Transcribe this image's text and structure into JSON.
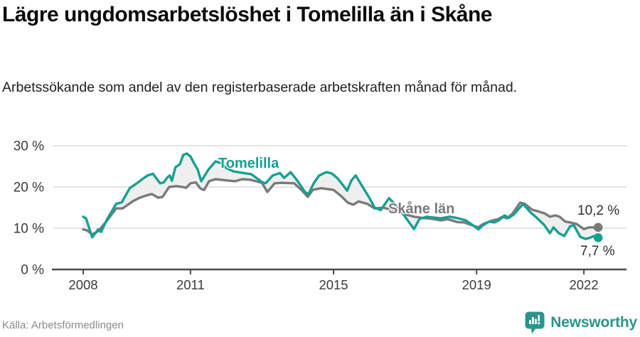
{
  "header": {
    "title": "Lägre ungdomsarbetslöshet i Tomelilla än i Skåne",
    "subtitle": "Arbetssökande som andel av den registerbaserade arbetskraften månad för månad."
  },
  "footer": {
    "source": "Källa: Arbetsförmedlingen",
    "brand": "Newsworthy"
  },
  "colors": {
    "tomelilla": "#16a091",
    "skane": "#7a7a7a",
    "grid": "#dcdcdc",
    "axis": "#4b4b4b",
    "band_fill": "#ededed",
    "tick_text": "#3b3b3b",
    "value_text": "#2e2e2e",
    "brand_teal": "#2c948c"
  },
  "chart_data": {
    "type": "line",
    "title": "Lägre ungdomsarbetslöshet i Tomelilla än i Skåne",
    "subtitle": "Arbetssökande som andel av den registerbaserade arbetskraften månad för månad.",
    "source": "Källa: Arbetsförmedlingen",
    "unit": "%",
    "grid": "horizontal",
    "xlim": [
      2007.1,
      2023.15
    ],
    "ylim": [
      0,
      31.5
    ],
    "x_ticks": [
      2008,
      2011,
      2015,
      2019,
      2022
    ],
    "x_tick_labels": [
      "2008",
      "2011",
      "2015",
      "2019",
      "2022"
    ],
    "y_ticks": [
      0,
      10,
      20,
      30
    ],
    "y_tick_labels": [
      "0 %",
      "10 %",
      "20 %",
      "30 %"
    ],
    "band_between_series": true,
    "series": [
      {
        "name": "Tomelilla",
        "color": "#16a091",
        "end_label": "7,7 %",
        "end_value": 7.7,
        "points": [
          [
            2008.0,
            12.8
          ],
          [
            2008.08,
            12.4
          ],
          [
            2008.25,
            7.8
          ],
          [
            2008.42,
            9.7
          ],
          [
            2008.5,
            9.1
          ],
          [
            2008.67,
            12.2
          ],
          [
            2008.92,
            15.9
          ],
          [
            2009.08,
            16.3
          ],
          [
            2009.3,
            19.7
          ],
          [
            2009.5,
            20.9
          ],
          [
            2009.65,
            21.9
          ],
          [
            2009.8,
            22.8
          ],
          [
            2009.95,
            23.2
          ],
          [
            2010.15,
            20.9
          ],
          [
            2010.25,
            21.1
          ],
          [
            2010.35,
            22.3
          ],
          [
            2010.42,
            22.8
          ],
          [
            2010.48,
            21.5
          ],
          [
            2010.58,
            24.8
          ],
          [
            2010.7,
            25.5
          ],
          [
            2010.8,
            27.8
          ],
          [
            2010.9,
            28.1
          ],
          [
            2011.0,
            27.4
          ],
          [
            2011.1,
            25.7
          ],
          [
            2011.2,
            24.3
          ],
          [
            2011.3,
            21.4
          ],
          [
            2011.5,
            24.2
          ],
          [
            2011.7,
            26.2
          ],
          [
            2011.85,
            25.8
          ],
          [
            2012.0,
            24.6
          ],
          [
            2012.2,
            23.8
          ],
          [
            2012.4,
            23.5
          ],
          [
            2012.7,
            23.1
          ],
          [
            2013.0,
            21.2
          ],
          [
            2013.1,
            20.9
          ],
          [
            2013.3,
            22.8
          ],
          [
            2013.5,
            23.4
          ],
          [
            2013.62,
            22.2
          ],
          [
            2013.8,
            23.6
          ],
          [
            2014.0,
            21.4
          ],
          [
            2014.2,
            18.8
          ],
          [
            2014.3,
            18.3
          ],
          [
            2014.45,
            21.0
          ],
          [
            2014.6,
            22.8
          ],
          [
            2014.8,
            23.6
          ],
          [
            2014.95,
            23.3
          ],
          [
            2015.1,
            22.2
          ],
          [
            2015.25,
            20.6
          ],
          [
            2015.38,
            19.1
          ],
          [
            2015.5,
            21.6
          ],
          [
            2015.62,
            22.8
          ],
          [
            2015.8,
            20.2
          ],
          [
            2016.0,
            17.4
          ],
          [
            2016.15,
            15.0
          ],
          [
            2016.32,
            14.4
          ],
          [
            2016.55,
            17.3
          ],
          [
            2016.85,
            14.6
          ],
          [
            2017.1,
            11.6
          ],
          [
            2017.25,
            9.8
          ],
          [
            2017.4,
            12.2
          ],
          [
            2017.6,
            12.8
          ],
          [
            2017.8,
            12.6
          ],
          [
            2018.0,
            12.4
          ],
          [
            2018.25,
            12.8
          ],
          [
            2018.5,
            12.4
          ],
          [
            2018.7,
            11.9
          ],
          [
            2018.9,
            10.7
          ],
          [
            2019.05,
            9.7
          ],
          [
            2019.18,
            10.7
          ],
          [
            2019.35,
            11.6
          ],
          [
            2019.5,
            11.4
          ],
          [
            2019.62,
            11.9
          ],
          [
            2019.78,
            13.1
          ],
          [
            2019.9,
            12.5
          ],
          [
            2020.05,
            13.4
          ],
          [
            2020.3,
            15.9
          ],
          [
            2020.5,
            13.9
          ],
          [
            2020.7,
            12.4
          ],
          [
            2020.9,
            10.7
          ],
          [
            2021.05,
            8.8
          ],
          [
            2021.15,
            10.2
          ],
          [
            2021.3,
            8.8
          ],
          [
            2021.45,
            8.1
          ],
          [
            2021.62,
            10.5
          ],
          [
            2021.72,
            10.7
          ],
          [
            2021.9,
            7.9
          ],
          [
            2022.05,
            7.4
          ],
          [
            2022.18,
            7.7
          ],
          [
            2022.28,
            8.1
          ],
          [
            2022.4,
            7.7
          ]
        ]
      },
      {
        "name": "Skåne län",
        "color": "#7a7a7a",
        "end_label": "10,2 %",
        "end_value": 10.2,
        "points": [
          [
            2008.0,
            9.7
          ],
          [
            2008.1,
            9.5
          ],
          [
            2008.25,
            8.5
          ],
          [
            2008.42,
            9.3
          ],
          [
            2008.67,
            11.9
          ],
          [
            2008.92,
            14.8
          ],
          [
            2009.1,
            14.8
          ],
          [
            2009.25,
            15.7
          ],
          [
            2009.4,
            16.6
          ],
          [
            2009.58,
            17.4
          ],
          [
            2009.75,
            17.9
          ],
          [
            2009.92,
            18.3
          ],
          [
            2010.1,
            17.4
          ],
          [
            2010.22,
            17.6
          ],
          [
            2010.4,
            20.0
          ],
          [
            2010.6,
            20.2
          ],
          [
            2010.78,
            20.0
          ],
          [
            2010.88,
            19.8
          ],
          [
            2011.0,
            20.9
          ],
          [
            2011.15,
            21.1
          ],
          [
            2011.28,
            19.6
          ],
          [
            2011.38,
            19.3
          ],
          [
            2011.52,
            21.4
          ],
          [
            2011.7,
            21.9
          ],
          [
            2012.0,
            21.6
          ],
          [
            2012.25,
            21.4
          ],
          [
            2012.45,
            21.9
          ],
          [
            2012.7,
            21.7
          ],
          [
            2013.0,
            21.0
          ],
          [
            2013.15,
            18.8
          ],
          [
            2013.35,
            20.9
          ],
          [
            2013.55,
            21.0
          ],
          [
            2013.9,
            20.9
          ],
          [
            2014.1,
            19.3
          ],
          [
            2014.28,
            17.6
          ],
          [
            2014.42,
            19.3
          ],
          [
            2014.65,
            19.7
          ],
          [
            2015.0,
            19.3
          ],
          [
            2015.2,
            17.9
          ],
          [
            2015.4,
            16.2
          ],
          [
            2015.55,
            15.7
          ],
          [
            2015.7,
            16.5
          ],
          [
            2015.95,
            15.9
          ],
          [
            2016.15,
            14.8
          ],
          [
            2016.4,
            15.0
          ],
          [
            2016.7,
            14.2
          ],
          [
            2017.0,
            13.4
          ],
          [
            2017.25,
            12.8
          ],
          [
            2017.5,
            12.5
          ],
          [
            2017.75,
            12.3
          ],
          [
            2018.0,
            11.9
          ],
          [
            2018.2,
            12.2
          ],
          [
            2018.45,
            11.5
          ],
          [
            2018.65,
            11.4
          ],
          [
            2018.95,
            10.5
          ],
          [
            2019.05,
            10.2
          ],
          [
            2019.18,
            11.0
          ],
          [
            2019.45,
            11.9
          ],
          [
            2019.6,
            12.2
          ],
          [
            2019.72,
            12.8
          ],
          [
            2019.85,
            12.4
          ],
          [
            2020.0,
            13.5
          ],
          [
            2020.22,
            16.2
          ],
          [
            2020.35,
            15.9
          ],
          [
            2020.55,
            14.5
          ],
          [
            2020.72,
            14.1
          ],
          [
            2020.9,
            13.6
          ],
          [
            2021.05,
            12.8
          ],
          [
            2021.2,
            13.1
          ],
          [
            2021.32,
            12.8
          ],
          [
            2021.48,
            11.6
          ],
          [
            2021.62,
            11.4
          ],
          [
            2021.8,
            11.0
          ],
          [
            2022.0,
            9.8
          ],
          [
            2022.15,
            10.2
          ],
          [
            2022.4,
            10.2
          ]
        ]
      }
    ]
  }
}
